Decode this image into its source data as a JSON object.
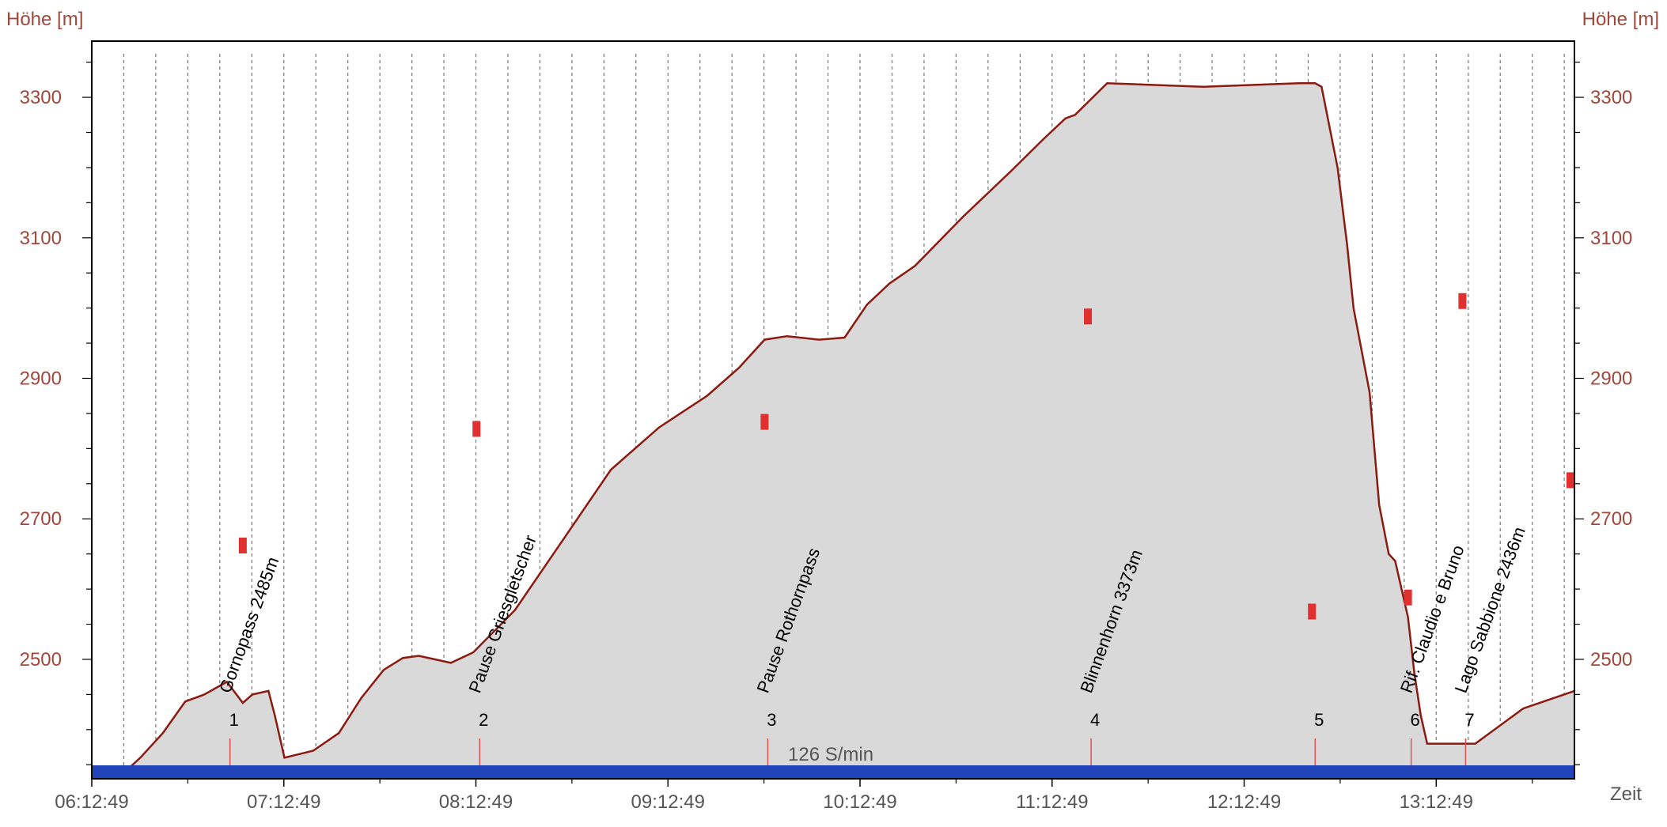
{
  "axes": {
    "y_left_title": "Höhe [m]",
    "y_right_title": "Höhe [m]",
    "x_title": "Zeit"
  },
  "cadence_label": "126 S/min",
  "colors": {
    "profile_line": "#8b1a10",
    "profile_fill": "#d9d9d9",
    "axis_text": "#a0473a",
    "marker": "#e03030",
    "bar": "#2244bb",
    "waypoint_tick": "#e05050"
  },
  "chart_data": {
    "type": "area",
    "x_unit": "time",
    "ylim": [
      2330,
      3380
    ],
    "ytick_values": [
      2500,
      2700,
      2900,
      3100,
      3300
    ],
    "ytick_labels": [
      "2500",
      "2700",
      "2900",
      "3100",
      "3300"
    ],
    "xlim": [
      "06:12:49",
      "13:56:00"
    ],
    "xtick_labels": [
      "06:12:49",
      "07:12:49",
      "08:12:49",
      "09:12:49",
      "10:12:49",
      "11:12:49",
      "12:12:49",
      "13:12:49"
    ],
    "grid_vertical_dashed": true,
    "series": [
      {
        "x": [
          "06:22:00",
          "06:28:00",
          "06:35:00",
          "06:42:00",
          "06:48:00",
          "06:55:00",
          "07:00:00",
          "07:03:00",
          "07:08:00",
          "07:10:00",
          "07:13:00",
          "07:22:00",
          "07:30:00",
          "07:37:00",
          "07:44:00",
          "07:50:00",
          "07:55:00",
          "08:05:00",
          "08:12:00",
          "08:25:00",
          "08:40:00",
          "08:55:00",
          "09:10:00",
          "09:25:00",
          "09:35:00",
          "09:43:00",
          "09:50:00",
          "10:00:00",
          "10:08:00",
          "10:15:00",
          "10:22:00",
          "10:30:00",
          "10:45:00",
          "11:00:00",
          "11:10:00",
          "11:17:00",
          "11:20:00",
          "11:30:00",
          "12:00:00",
          "12:30:00",
          "12:35:00",
          "12:37:00",
          "12:42:00",
          "12:45:00",
          "12:47:00",
          "12:52:00",
          "12:55:00",
          "12:58:00",
          "13:00:00",
          "13:04:00",
          "13:06:00",
          "13:08:00",
          "13:10:00",
          "13:25:00",
          "13:40:00",
          "13:56:00"
        ],
        "y": [
          2335,
          2360,
          2395,
          2440,
          2450,
          2468,
          2438,
          2450,
          2455,
          2420,
          2360,
          2370,
          2395,
          2445,
          2485,
          2502,
          2505,
          2495,
          2510,
          2570,
          2670,
          2770,
          2830,
          2875,
          2915,
          2955,
          2960,
          2955,
          2958,
          3005,
          3035,
          3060,
          3130,
          3195,
          3240,
          3270,
          3275,
          3320,
          3315,
          3320,
          3320,
          3315,
          3200,
          3090,
          3000,
          2880,
          2720,
          2650,
          2640,
          2560,
          2480,
          2420,
          2380,
          2380,
          2430,
          2455
        ]
      }
    ],
    "markers": [
      {
        "x": "07:00:00",
        "y": 2662
      },
      {
        "x": "08:13:00",
        "y": 2828
      },
      {
        "x": "09:43:00",
        "y": 2838
      },
      {
        "x": "11:24:00",
        "y": 2988
      },
      {
        "x": "12:34:00",
        "y": 2568
      },
      {
        "x": "13:04:00",
        "y": 2588
      },
      {
        "x": "13:21:00",
        "y": 3010
      },
      {
        "x": "13:56:00",
        "y": 2755
      }
    ],
    "waypoints": [
      {
        "num": "1",
        "label": "Gornopass 2485m",
        "time": "06:56:00"
      },
      {
        "num": "2",
        "label": "Pause Griesgletscher",
        "time": "08:14:00"
      },
      {
        "num": "3",
        "label": "Pause Rothornpass",
        "time": "09:44:00"
      },
      {
        "num": "4",
        "label": "Blinnenhorn 3373m",
        "time": "11:25:00"
      },
      {
        "num": "5",
        "label": "",
        "time": "12:35:00"
      },
      {
        "num": "6",
        "label": "Rif. Claudio e Bruno",
        "time": "13:05:00"
      },
      {
        "num": "7",
        "label": "Lago Sabbione 2436m",
        "time": "13:22:00"
      }
    ]
  }
}
